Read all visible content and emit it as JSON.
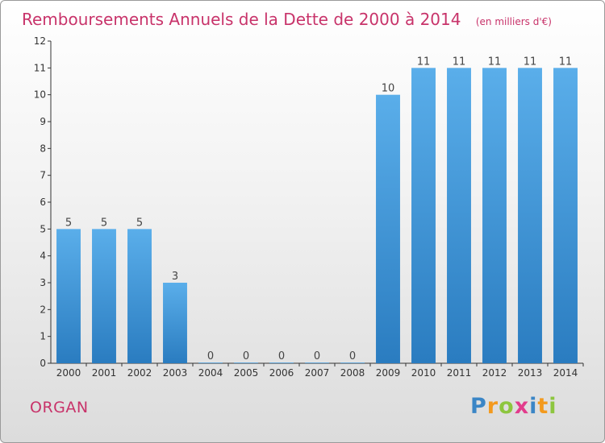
{
  "colors": {
    "title": "#c8336a",
    "bar_light": "#5aaeea",
    "bar_dark": "#2a7cc0",
    "axis": "#333333",
    "commune": "#c8336a"
  },
  "commune": "ORGAN",
  "logo": {
    "letters": [
      "P",
      "r",
      "o",
      "x",
      "i",
      "t",
      "i"
    ],
    "colors": [
      "#3b86c6",
      "#f39a1e",
      "#8dc63f",
      "#e23c8c",
      "#3b86c6",
      "#f39a1e",
      "#8dc63f"
    ]
  },
  "chart_data": {
    "type": "bar",
    "title": "Remboursements Annuels de la Dette de 2000 à 2014",
    "subtitle": "(en milliers d'€)",
    "categories": [
      "2000",
      "2001",
      "2002",
      "2003",
      "2004",
      "2005",
      "2006",
      "2007",
      "2008",
      "2009",
      "2010",
      "2011",
      "2012",
      "2013",
      "2014"
    ],
    "values": [
      5,
      5,
      5,
      3,
      0,
      0,
      0,
      0,
      0,
      10,
      11,
      11,
      11,
      11,
      11
    ],
    "data_labels": [
      "5",
      "5",
      "5",
      "3",
      "0",
      "0",
      "0",
      "0",
      "0",
      "10",
      "11",
      "11",
      "11",
      "11",
      "11"
    ],
    "y_ticks": [
      0,
      1,
      2,
      3,
      4,
      5,
      6,
      7,
      8,
      9,
      10,
      11,
      12
    ],
    "ylim": [
      0,
      12
    ],
    "grid": false,
    "legend": "none"
  }
}
